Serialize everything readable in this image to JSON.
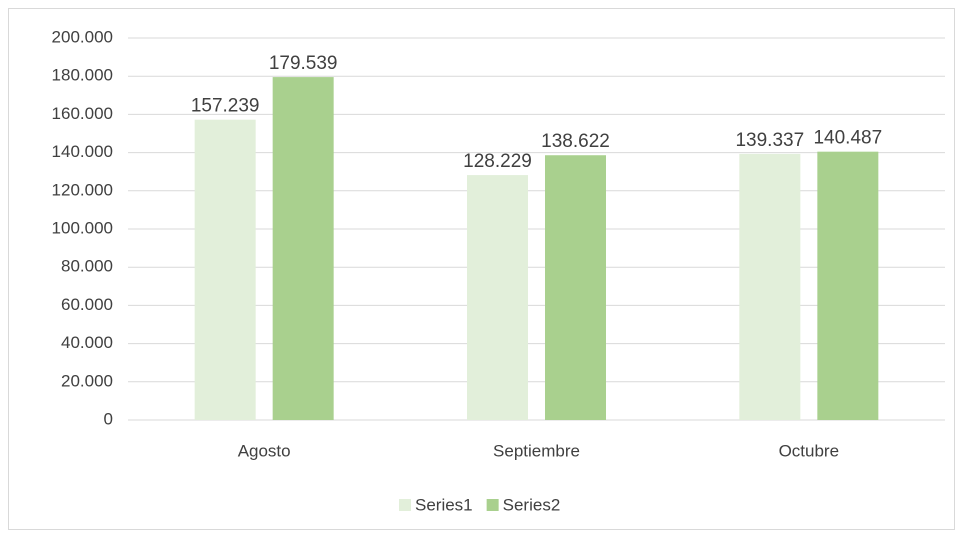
{
  "chart_data": {
    "type": "bar",
    "categories": [
      "Agosto",
      "Septiembre",
      "Octubre"
    ],
    "series": [
      {
        "name": "Series1",
        "color": "#e2efda",
        "values": [
          157239,
          128229,
          139337
        ],
        "value_labels": [
          "157.239",
          "128.229",
          "139.337"
        ]
      },
      {
        "name": "Series2",
        "color": "#a9d08e",
        "values": [
          179539,
          138622,
          140487
        ],
        "value_labels": [
          "179.539",
          "138.622",
          "140.487"
        ]
      }
    ],
    "ylim": [
      0,
      200000
    ],
    "yticks": [
      0,
      {
        "value": 20000,
        "label": "20.000"
      },
      {
        "value": 40000,
        "label": "40.000"
      },
      {
        "value": 60000,
        "label": "60.000"
      },
      {
        "value": 80000,
        "label": "80.000"
      },
      {
        "value": 100000,
        "label": "100.000"
      },
      {
        "value": 120000,
        "label": "120.000"
      },
      {
        "value": 140000,
        "label": "140.000"
      },
      {
        "value": 160000,
        "label": "160.000"
      },
      {
        "value": 180000,
        "label": "180.000"
      },
      {
        "value": 200000,
        "label": "200.000"
      }
    ],
    "grid": true,
    "legend": "bottom"
  }
}
